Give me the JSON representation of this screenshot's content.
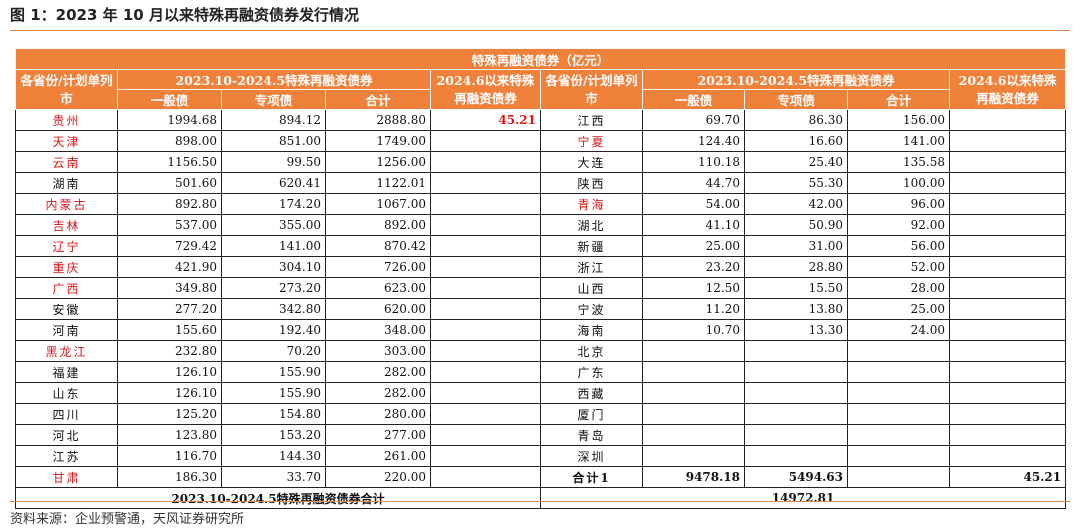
{
  "figure_title": "图 1：2023 年 10 月以来特殊再融资债券发行情况",
  "table": {
    "caption": "特殊再融资债券（亿元）",
    "col_province": "各省份/计划单列市",
    "col_period_group": "2023.10-2024.5特殊再融资债券",
    "col_general": "一般债",
    "col_special": "专项债",
    "col_total": "合计",
    "col_june": "2024.6以来特殊再融资债券",
    "left_rows": [
      {
        "name": "贵州",
        "general": "1994.68",
        "special": "894.12",
        "total": "2888.80",
        "june": "45.21",
        "red": true
      },
      {
        "name": "天津",
        "general": "898.00",
        "special": "851.00",
        "total": "1749.00",
        "june": "",
        "red": true
      },
      {
        "name": "云南",
        "general": "1156.50",
        "special": "99.50",
        "total": "1256.00",
        "june": "",
        "red": true
      },
      {
        "name": "湖南",
        "general": "501.60",
        "special": "620.41",
        "total": "1122.01",
        "june": "",
        "red": false
      },
      {
        "name": "内蒙古",
        "general": "892.80",
        "special": "174.20",
        "total": "1067.00",
        "june": "",
        "red": true
      },
      {
        "name": "吉林",
        "general": "537.00",
        "special": "355.00",
        "total": "892.00",
        "june": "",
        "red": true
      },
      {
        "name": "辽宁",
        "general": "729.42",
        "special": "141.00",
        "total": "870.42",
        "june": "",
        "red": true
      },
      {
        "name": "重庆",
        "general": "421.90",
        "special": "304.10",
        "total": "726.00",
        "june": "",
        "red": true
      },
      {
        "name": "广西",
        "general": "349.80",
        "special": "273.20",
        "total": "623.00",
        "june": "",
        "red": true
      },
      {
        "name": "安徽",
        "general": "277.20",
        "special": "342.80",
        "total": "620.00",
        "june": "",
        "red": false
      },
      {
        "name": "河南",
        "general": "155.60",
        "special": "192.40",
        "total": "348.00",
        "june": "",
        "red": false
      },
      {
        "name": "黑龙江",
        "general": "232.80",
        "special": "70.20",
        "total": "303.00",
        "june": "",
        "red": true
      },
      {
        "name": "福建",
        "general": "126.10",
        "special": "155.90",
        "total": "282.00",
        "june": "",
        "red": false
      },
      {
        "name": "山东",
        "general": "126.10",
        "special": "155.90",
        "total": "282.00",
        "june": "",
        "red": false
      },
      {
        "name": "四川",
        "general": "125.20",
        "special": "154.80",
        "total": "280.00",
        "june": "",
        "red": false
      },
      {
        "name": "河北",
        "general": "123.80",
        "special": "153.20",
        "total": "277.00",
        "june": "",
        "red": false
      },
      {
        "name": "江苏",
        "general": "116.70",
        "special": "144.30",
        "total": "261.00",
        "june": "",
        "red": false
      },
      {
        "name": "甘肃",
        "general": "186.30",
        "special": "33.70",
        "total": "220.00",
        "june": "",
        "red": true
      }
    ],
    "right_rows": [
      {
        "name": "江西",
        "general": "69.70",
        "special": "86.30",
        "total": "156.00",
        "june": "",
        "red": false
      },
      {
        "name": "宁夏",
        "general": "124.40",
        "special": "16.60",
        "total": "141.00",
        "june": "",
        "red": true
      },
      {
        "name": "大连",
        "general": "110.18",
        "special": "25.40",
        "total": "135.58",
        "june": "",
        "red": false
      },
      {
        "name": "陕西",
        "general": "44.70",
        "special": "55.30",
        "total": "100.00",
        "june": "",
        "red": false
      },
      {
        "name": "青海",
        "general": "54.00",
        "special": "42.00",
        "total": "96.00",
        "june": "",
        "red": true
      },
      {
        "name": "湖北",
        "general": "41.10",
        "special": "50.90",
        "total": "92.00",
        "june": "",
        "red": false
      },
      {
        "name": "新疆",
        "general": "25.00",
        "special": "31.00",
        "total": "56.00",
        "june": "",
        "red": false
      },
      {
        "name": "浙江",
        "general": "23.20",
        "special": "28.80",
        "total": "52.00",
        "june": "",
        "red": false
      },
      {
        "name": "山西",
        "general": "12.50",
        "special": "15.50",
        "total": "28.00",
        "june": "",
        "red": false
      },
      {
        "name": "宁波",
        "general": "11.20",
        "special": "13.80",
        "total": "25.00",
        "june": "",
        "red": false
      },
      {
        "name": "海南",
        "general": "10.70",
        "special": "13.30",
        "total": "24.00",
        "june": "",
        "red": false
      },
      {
        "name": "北京",
        "general": "",
        "special": "",
        "total": "",
        "june": "",
        "red": false
      },
      {
        "name": "广东",
        "general": "",
        "special": "",
        "total": "",
        "june": "",
        "red": false
      },
      {
        "name": "西藏",
        "general": "",
        "special": "",
        "total": "",
        "june": "",
        "red": false
      },
      {
        "name": "厦门",
        "general": "",
        "special": "",
        "total": "",
        "june": "",
        "red": false
      },
      {
        "name": "青岛",
        "general": "",
        "special": "",
        "total": "",
        "june": "",
        "red": false
      },
      {
        "name": "深圳",
        "general": "",
        "special": "",
        "total": "",
        "june": "",
        "red": false
      },
      {
        "name": "合计1",
        "general": "9478.18",
        "special": "5494.63",
        "total": "",
        "june": "45.21",
        "red": false,
        "bold": true
      }
    ],
    "grand_total_label": "2023.10-2024.5特殊再融资债券合计",
    "grand_total_value": "14972.81"
  },
  "source": "资料来源：企业预警通，天风证券研究所"
}
